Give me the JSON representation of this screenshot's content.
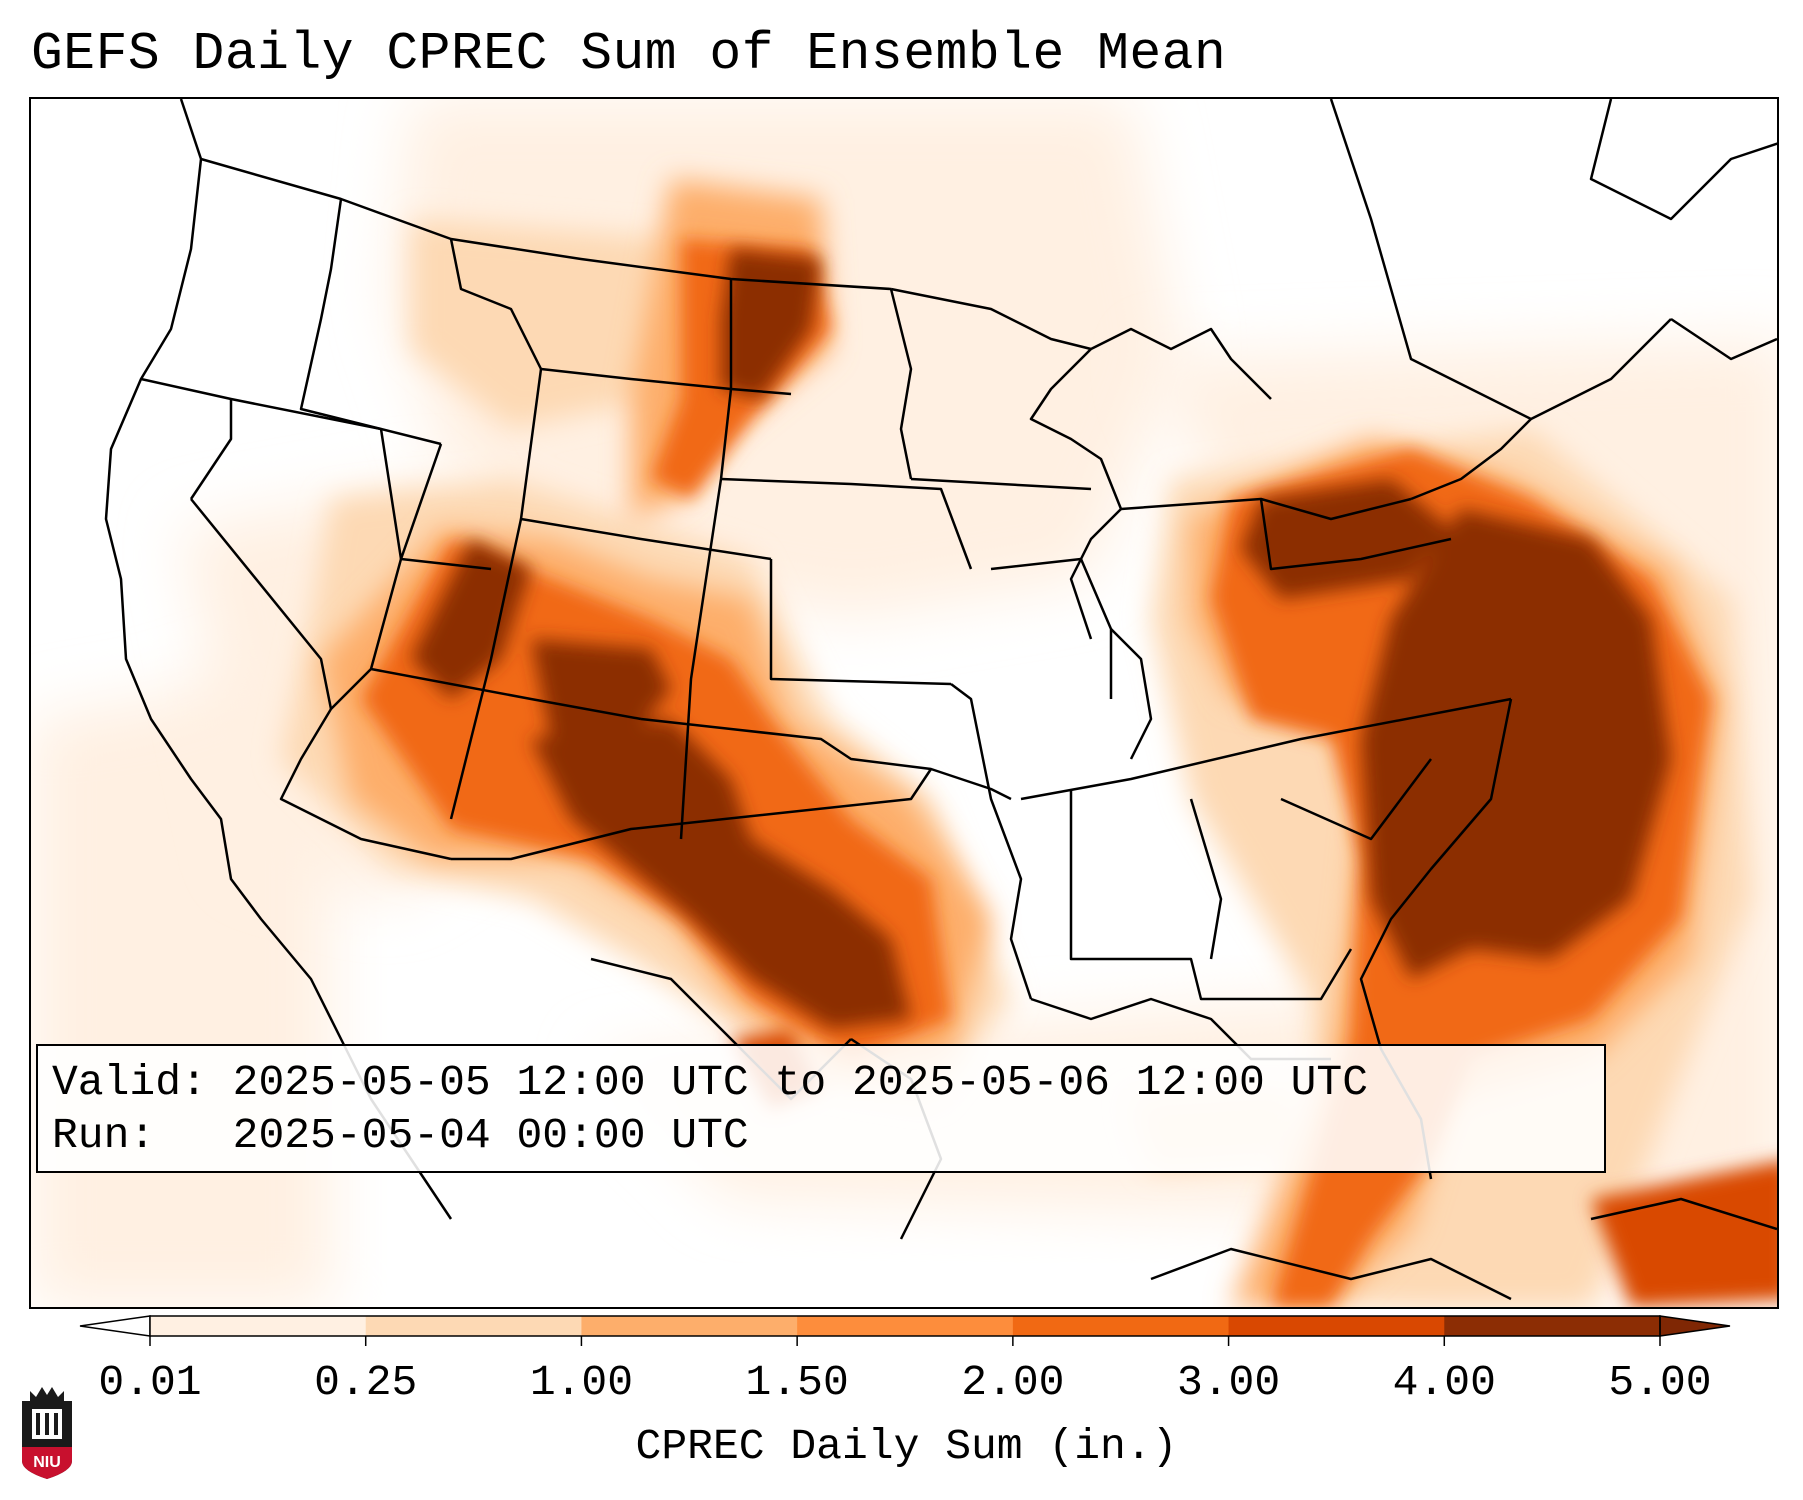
{
  "title": "GEFS Daily CPREC Sum of Ensemble Mean",
  "info": {
    "valid_label": "Valid:",
    "valid_value": "2025-05-05 12:00 UTC to 2025-05-06 12:00 UTC",
    "run_label": "Run:",
    "run_value": "2025-05-04 00:00 UTC"
  },
  "colorbar": {
    "label": "CPREC Daily Sum (in.)",
    "ticks": [
      "0.01",
      "0.25",
      "1.00",
      "1.50",
      "2.00",
      "3.00",
      "4.00",
      "5.00"
    ],
    "colors": [
      "#fff0e2",
      "#fdd9b4",
      "#fdae6b",
      "#fd8d3c",
      "#f16913",
      "#d94801",
      "#8c2d04"
    ],
    "extend": "both",
    "extend_low_color": "#ffffff",
    "extend_high_color": "#7f2704"
  },
  "logo": {
    "text": "NIU",
    "color": "#c8102e"
  },
  "map": {
    "projection": "Lambert Conformal",
    "region": "CONUS",
    "field": "GEFS ensemble mean daily convective precipitation"
  }
}
